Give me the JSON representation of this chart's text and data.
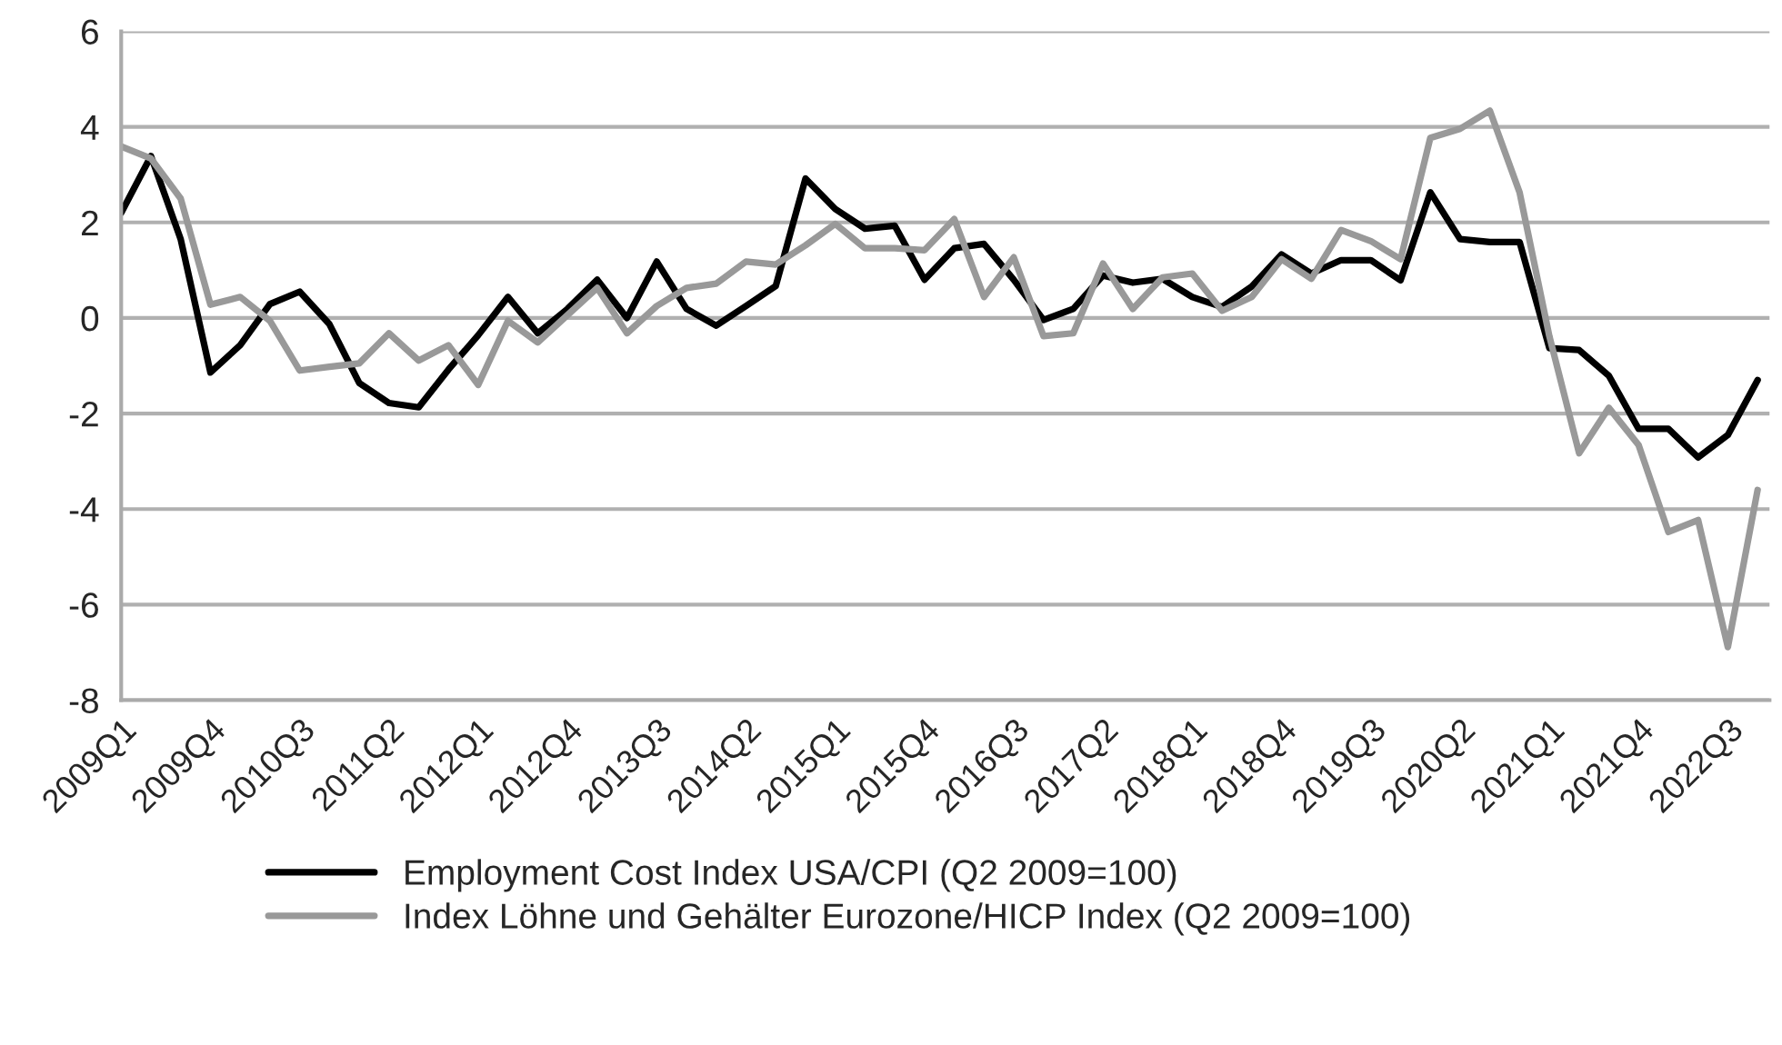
{
  "chart_data": {
    "type": "line",
    "categories": [
      "2009Q1",
      null,
      null,
      "2009Q4",
      null,
      null,
      "2010Q3",
      null,
      null,
      "2011Q2",
      null,
      null,
      "2012Q1",
      null,
      null,
      "2012Q4",
      null,
      null,
      "2013Q3",
      null,
      null,
      "2014Q2",
      null,
      null,
      "2015Q1",
      null,
      null,
      "2015Q4",
      null,
      null,
      "2016Q3",
      null,
      null,
      "2017Q2",
      null,
      null,
      "2018Q1",
      null,
      null,
      "2018Q4",
      null,
      null,
      "2019Q3",
      null,
      null,
      "2020Q2",
      null,
      null,
      "2021Q1",
      null,
      null,
      "2021Q4",
      null,
      null,
      "2022Q3",
      null
    ],
    "series": [
      {
        "name": "Employment Cost Index USA/CPI (Q2 2009=100)",
        "color": "#000000",
        "values": [
          2.2,
          3.39,
          1.65,
          -1.14,
          -0.57,
          0.29,
          0.55,
          -0.13,
          -1.36,
          -1.78,
          -1.87,
          -1.08,
          -0.36,
          0.44,
          -0.32,
          0.19,
          0.8,
          0.0,
          1.18,
          0.19,
          -0.16,
          0.25,
          0.67,
          2.92,
          2.28,
          1.87,
          1.93,
          0.8,
          1.46,
          1.55,
          0.8,
          -0.04,
          0.19,
          0.89,
          0.74,
          0.82,
          0.44,
          0.23,
          0.66,
          1.33,
          0.93,
          1.21,
          1.21,
          0.79,
          2.63,
          1.65,
          1.59,
          1.59,
          -0.63,
          -0.67,
          -1.21,
          -2.32,
          -2.32,
          -2.92,
          -2.45,
          -1.3
        ]
      },
      {
        "name": "Index Löhne und Gehälter Eurozone/HICP Index (Q2 2009=100)",
        "color": "#999999",
        "values": [
          3.59,
          3.34,
          2.5,
          0.28,
          0.44,
          -0.06,
          -1.1,
          -1.02,
          -0.95,
          -0.32,
          -0.89,
          -0.57,
          -1.4,
          -0.06,
          -0.51,
          0.06,
          0.63,
          -0.32,
          0.25,
          0.63,
          0.72,
          1.18,
          1.12,
          1.52,
          1.97,
          1.46,
          1.46,
          1.42,
          2.07,
          0.44,
          1.27,
          -0.38,
          -0.32,
          1.14,
          0.19,
          0.85,
          0.93,
          0.15,
          0.44,
          1.23,
          0.82,
          1.84,
          1.61,
          1.23,
          3.77,
          3.96,
          4.34,
          2.63,
          -0.38,
          -2.83,
          -1.88,
          -2.66,
          -4.48,
          -4.23,
          -6.89,
          -3.6
        ]
      }
    ],
    "ylim": [
      -8,
      6
    ],
    "yticks": [
      -8,
      -6,
      -4,
      -2,
      0,
      2,
      4,
      6
    ],
    "grid": "y",
    "legend": "bottom",
    "marker": "none",
    "line_style": "solid"
  }
}
